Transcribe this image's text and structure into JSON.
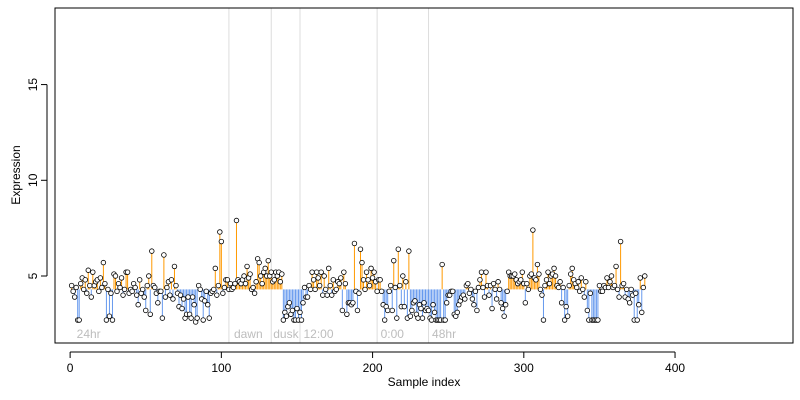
{
  "chart_data": {
    "type": "scatter",
    "xlabel": "Sample index",
    "ylabel": "Expression",
    "xlim": [
      -10,
      478
    ],
    "ylim": [
      1.5,
      19
    ],
    "x_ticks": [
      0,
      100,
      200,
      300,
      400
    ],
    "y_ticks": [
      5,
      10,
      15
    ],
    "baseline": 4.3,
    "grid": false,
    "colors": {
      "above_baseline": "#ff9900",
      "below_baseline": "#6699ee",
      "point_stroke": "#000000",
      "point_fill": "#ffffff",
      "divider": "#dddddd",
      "phase_label": "#bdbdbd"
    },
    "dividers": [
      105,
      133,
      152,
      203,
      237
    ],
    "phase_labels": [
      {
        "text": "24hr",
        "x": 3
      },
      {
        "text": "dawn",
        "x": 107
      },
      {
        "text": "dusk",
        "x": 133
      },
      {
        "text": "12:00",
        "x": 153
      },
      {
        "text": "0:00",
        "x": 204
      },
      {
        "text": "48hr",
        "x": 238
      }
    ],
    "points": [
      [
        1,
        4.5
      ],
      [
        2,
        4.2
      ],
      [
        3,
        3.9
      ],
      [
        4,
        4.4
      ],
      [
        5,
        2.7
      ],
      [
        6,
        2.7
      ],
      [
        7,
        4.6
      ],
      [
        8,
        4.9
      ],
      [
        9,
        4.3
      ],
      [
        10,
        4.8
      ],
      [
        11,
        4.1
      ],
      [
        12,
        5.3
      ],
      [
        13,
        4.5
      ],
      [
        14,
        3.9
      ],
      [
        15,
        5.2
      ],
      [
        16,
        4.5
      ],
      [
        17,
        4.7
      ],
      [
        18,
        4.8
      ],
      [
        19,
        4.2
      ],
      [
        20,
        4.9
      ],
      [
        21,
        4.4
      ],
      [
        22,
        5.7
      ],
      [
        23,
        4.6
      ],
      [
        24,
        2.7
      ],
      [
        25,
        4.3
      ],
      [
        26,
        2.9
      ],
      [
        27,
        4.1
      ],
      [
        28,
        2.7
      ],
      [
        29,
        5.1
      ],
      [
        30,
        5.0
      ],
      [
        31,
        4.2
      ],
      [
        32,
        4.6
      ],
      [
        33,
        4.4
      ],
      [
        34,
        4.9
      ],
      [
        35,
        4.0
      ],
      [
        36,
        4.3
      ],
      [
        37,
        5.2
      ],
      [
        38,
        5.2
      ],
      [
        39,
        4.1
      ],
      [
        40,
        4.3
      ],
      [
        41,
        4.2
      ],
      [
        42,
        4.6
      ],
      [
        43,
        4.4
      ],
      [
        44,
        4.0
      ],
      [
        45,
        3.5
      ],
      [
        46,
        4.8
      ],
      [
        47,
        4.1
      ],
      [
        48,
        4.3
      ],
      [
        49,
        3.9
      ],
      [
        50,
        3.2
      ],
      [
        51,
        4.5
      ],
      [
        52,
        5.0
      ],
      [
        53,
        3.0
      ],
      [
        54,
        6.3
      ],
      [
        55,
        4.5
      ],
      [
        56,
        4.4
      ],
      [
        57,
        4.1
      ],
      [
        58,
        3.6
      ],
      [
        59,
        4.2
      ],
      [
        60,
        4.2
      ],
      [
        61,
        2.8
      ],
      [
        62,
        6.1
      ],
      [
        63,
        3.9
      ],
      [
        64,
        4.4
      ],
      [
        65,
        4.7
      ],
      [
        66,
        4.0
      ],
      [
        67,
        4.8
      ],
      [
        68,
        3.8
      ],
      [
        69,
        5.5
      ],
      [
        70,
        4.5
      ],
      [
        71,
        4.1
      ],
      [
        72,
        3.4
      ],
      [
        73,
        4.0
      ],
      [
        74,
        3.3
      ],
      [
        75,
        3.8
      ],
      [
        76,
        2.8
      ],
      [
        77,
        3.0
      ],
      [
        78,
        3.9
      ],
      [
        79,
        3.0
      ],
      [
        80,
        2.8
      ],
      [
        81,
        3.9
      ],
      [
        82,
        3.5
      ],
      [
        83,
        2.6
      ],
      [
        84,
        2.8
      ],
      [
        85,
        4.5
      ],
      [
        86,
        4.3
      ],
      [
        87,
        3.8
      ],
      [
        88,
        2.7
      ],
      [
        89,
        3.7
      ],
      [
        90,
        4.2
      ],
      [
        91,
        3.5
      ],
      [
        92,
        2.8
      ],
      [
        93,
        4.1
      ],
      [
        94,
        4.2
      ],
      [
        95,
        4.3
      ],
      [
        96,
        5.4
      ],
      [
        97,
        4.0
      ],
      [
        98,
        4.5
      ],
      [
        99,
        7.3
      ],
      [
        100,
        6.8
      ],
      [
        101,
        4.1
      ],
      [
        102,
        4.4
      ],
      [
        103,
        4.8
      ],
      [
        104,
        4.8
      ],
      [
        105,
        4.3
      ],
      [
        106,
        4.6
      ],
      [
        107,
        4.3
      ],
      [
        108,
        4.4
      ],
      [
        109,
        4.6
      ],
      [
        110,
        7.9
      ],
      [
        111,
        4.8
      ],
      [
        112,
        4.7
      ],
      [
        113,
        4.6
      ],
      [
        114,
        4.8
      ],
      [
        115,
        5.0
      ],
      [
        116,
        4.6
      ],
      [
        117,
        5.5
      ],
      [
        118,
        4.9
      ],
      [
        119,
        5.1
      ],
      [
        120,
        4.3
      ],
      [
        121,
        4.4
      ],
      [
        122,
        4.1
      ],
      [
        123,
        4.7
      ],
      [
        124,
        5.9
      ],
      [
        125,
        5.7
      ],
      [
        126,
        5.0
      ],
      [
        127,
        4.6
      ],
      [
        128,
        5.2
      ],
      [
        129,
        5.4
      ],
      [
        130,
        5.0
      ],
      [
        131,
        5.8
      ],
      [
        132,
        5.0
      ],
      [
        133,
        5.2
      ],
      [
        134,
        4.7
      ],
      [
        135,
        4.8
      ],
      [
        136,
        5.2
      ],
      [
        137,
        5.0
      ],
      [
        138,
        5.2
      ],
      [
        139,
        4.7
      ],
      [
        140,
        5.1
      ],
      [
        141,
        2.7
      ],
      [
        142,
        3.1
      ],
      [
        143,
        2.9
      ],
      [
        144,
        3.4
      ],
      [
        145,
        3.6
      ],
      [
        146,
        3.0
      ],
      [
        147,
        3.2
      ],
      [
        148,
        2.7
      ],
      [
        149,
        2.7
      ],
      [
        150,
        3.3
      ],
      [
        151,
        2.7
      ],
      [
        152,
        3.1
      ],
      [
        153,
        2.7
      ],
      [
        154,
        3.6
      ],
      [
        155,
        4.4
      ],
      [
        156,
        3.9
      ],
      [
        157,
        3.9
      ],
      [
        158,
        4.5
      ],
      [
        159,
        4.3
      ],
      [
        160,
        5.2
      ],
      [
        161,
        4.8
      ],
      [
        162,
        4.3
      ],
      [
        163,
        5.2
      ],
      [
        164,
        4.9
      ],
      [
        165,
        4.5
      ],
      [
        166,
        5.2
      ],
      [
        167,
        4.0
      ],
      [
        168,
        5.0
      ],
      [
        169,
        4.3
      ],
      [
        170,
        4.0
      ],
      [
        171,
        5.4
      ],
      [
        172,
        4.5
      ],
      [
        173,
        4.0
      ],
      [
        174,
        4.8
      ],
      [
        175,
        4.2
      ],
      [
        176,
        4.3
      ],
      [
        177,
        4.7
      ],
      [
        178,
        4.6
      ],
      [
        179,
        4.9
      ],
      [
        180,
        3.2
      ],
      [
        181,
        5.2
      ],
      [
        182,
        4.6
      ],
      [
        183,
        3.0
      ],
      [
        184,
        3.6
      ],
      [
        185,
        3.6
      ],
      [
        186,
        3.5
      ],
      [
        187,
        3.6
      ],
      [
        188,
        6.7
      ],
      [
        189,
        4.2
      ],
      [
        190,
        3.2
      ],
      [
        191,
        4.1
      ],
      [
        192,
        6.4
      ],
      [
        193,
        5.7
      ],
      [
        194,
        4.8
      ],
      [
        195,
        4.3
      ],
      [
        196,
        5.2
      ],
      [
        197,
        4.8
      ],
      [
        198,
        4.5
      ],
      [
        199,
        5.4
      ],
      [
        200,
        4.9
      ],
      [
        201,
        5.2
      ],
      [
        202,
        4.7
      ],
      [
        203,
        4.2
      ],
      [
        204,
        4.8
      ],
      [
        205,
        4.8
      ],
      [
        206,
        4.2
      ],
      [
        207,
        3.5
      ],
      [
        208,
        2.7
      ],
      [
        209,
        3.4
      ],
      [
        210,
        3.2
      ],
      [
        211,
        4.2
      ],
      [
        212,
        4.5
      ],
      [
        213,
        3.2
      ],
      [
        214,
        5.8
      ],
      [
        215,
        4.4
      ],
      [
        216,
        2.8
      ],
      [
        217,
        6.4
      ],
      [
        218,
        4.5
      ],
      [
        219,
        3.4
      ],
      [
        220,
        5.0
      ],
      [
        221,
        3.4
      ],
      [
        222,
        4.7
      ],
      [
        223,
        2.8
      ],
      [
        224,
        6.3
      ],
      [
        225,
        2.9
      ],
      [
        226,
        3.2
      ],
      [
        227,
        3.6
      ],
      [
        228,
        3.7
      ],
      [
        229,
        3.0
      ],
      [
        230,
        2.8
      ],
      [
        231,
        3.5
      ],
      [
        232,
        3.3
      ],
      [
        233,
        2.8
      ],
      [
        234,
        3.6
      ],
      [
        235,
        3.2
      ],
      [
        236,
        3.3
      ],
      [
        237,
        3.2
      ],
      [
        238,
        2.8
      ],
      [
        239,
        2.7
      ],
      [
        240,
        3.5
      ],
      [
        241,
        3.1
      ],
      [
        242,
        2.7
      ],
      [
        243,
        2.7
      ],
      [
        244,
        2.7
      ],
      [
        245,
        2.7
      ],
      [
        246,
        5.6
      ],
      [
        247,
        2.7
      ],
      [
        248,
        2.7
      ],
      [
        249,
        3.6
      ],
      [
        250,
        4.0
      ],
      [
        251,
        4.0
      ],
      [
        252,
        4.2
      ],
      [
        253,
        4.2
      ],
      [
        254,
        3.0
      ],
      [
        255,
        2.9
      ],
      [
        256,
        3.1
      ],
      [
        257,
        3.5
      ],
      [
        258,
        3.7
      ],
      [
        259,
        3.9
      ],
      [
        260,
        4.0
      ],
      [
        261,
        3.8
      ],
      [
        262,
        4.5
      ],
      [
        263,
        4.6
      ],
      [
        264,
        4.1
      ],
      [
        265,
        4.3
      ],
      [
        266,
        3.8
      ],
      [
        267,
        3.5
      ],
      [
        268,
        4.2
      ],
      [
        269,
        3.2
      ],
      [
        270,
        4.4
      ],
      [
        271,
        4.8
      ],
      [
        272,
        5.2
      ],
      [
        273,
        4.4
      ],
      [
        274,
        3.9
      ],
      [
        275,
        5.2
      ],
      [
        276,
        4.5
      ],
      [
        277,
        4.0
      ],
      [
        278,
        4.5
      ],
      [
        279,
        3.3
      ],
      [
        280,
        4.6
      ],
      [
        281,
        4.3
      ],
      [
        282,
        3.8
      ],
      [
        283,
        4.7
      ],
      [
        284,
        4.3
      ],
      [
        285,
        3.6
      ],
      [
        286,
        3.3
      ],
      [
        287,
        2.9
      ],
      [
        288,
        3.5
      ],
      [
        289,
        4.2
      ],
      [
        290,
        5.2
      ],
      [
        291,
        5.0
      ],
      [
        292,
        5.0
      ],
      [
        293,
        5.0
      ],
      [
        294,
        5.1
      ],
      [
        295,
        4.8
      ],
      [
        296,
        4.6
      ],
      [
        297,
        4.7
      ],
      [
        298,
        4.8
      ],
      [
        299,
        5.2
      ],
      [
        300,
        4.6
      ],
      [
        301,
        3.6
      ],
      [
        302,
        4.6
      ],
      [
        303,
        4.3
      ],
      [
        304,
        5.0
      ],
      [
        305,
        5.1
      ],
      [
        306,
        7.4
      ],
      [
        307,
        4.9
      ],
      [
        308,
        4.8
      ],
      [
        309,
        5.6
      ],
      [
        310,
        5.1
      ],
      [
        311,
        4.3
      ],
      [
        312,
        4.0
      ],
      [
        313,
        2.7
      ],
      [
        314,
        4.5
      ],
      [
        315,
        4.8
      ],
      [
        316,
        5.2
      ],
      [
        317,
        4.6
      ],
      [
        318,
        5.0
      ],
      [
        319,
        5.1
      ],
      [
        320,
        5.4
      ],
      [
        321,
        5.0
      ],
      [
        322,
        4.5
      ],
      [
        323,
        4.4
      ],
      [
        324,
        4.7
      ],
      [
        325,
        3.6
      ],
      [
        326,
        4.4
      ],
      [
        327,
        2.7
      ],
      [
        328,
        3.4
      ],
      [
        329,
        2.9
      ],
      [
        330,
        4.5
      ],
      [
        331,
        5.1
      ],
      [
        332,
        5.4
      ],
      [
        333,
        4.8
      ],
      [
        334,
        4.6
      ],
      [
        335,
        4.4
      ],
      [
        336,
        4.7
      ],
      [
        337,
        4.2
      ],
      [
        338,
        4.9
      ],
      [
        339,
        4.3
      ],
      [
        340,
        3.9
      ],
      [
        341,
        4.7
      ],
      [
        342,
        3.2
      ],
      [
        343,
        2.7
      ],
      [
        344,
        4.1
      ],
      [
        345,
        2.7
      ],
      [
        346,
        2.7
      ],
      [
        347,
        2.7
      ],
      [
        348,
        2.7
      ],
      [
        349,
        2.7
      ],
      [
        350,
        4.5
      ],
      [
        351,
        4.2
      ],
      [
        352,
        4.2
      ],
      [
        353,
        4.5
      ],
      [
        354,
        4.4
      ],
      [
        355,
        4.9
      ],
      [
        356,
        4.4
      ],
      [
        357,
        4.7
      ],
      [
        358,
        5.0
      ],
      [
        359,
        4.4
      ],
      [
        360,
        4.5
      ],
      [
        361,
        5.5
      ],
      [
        362,
        4.3
      ],
      [
        363,
        3.9
      ],
      [
        364,
        6.8
      ],
      [
        365,
        4.5
      ],
      [
        366,
        4.6
      ],
      [
        367,
        3.9
      ],
      [
        368,
        4.3
      ],
      [
        369,
        3.8
      ],
      [
        370,
        3.6
      ],
      [
        371,
        4.3
      ],
      [
        372,
        4.0
      ],
      [
        373,
        2.7
      ],
      [
        374,
        4.1
      ],
      [
        375,
        2.7
      ],
      [
        376,
        3.5
      ],
      [
        377,
        4.9
      ],
      [
        378,
        3.1
      ],
      [
        379,
        4.4
      ],
      [
        380,
        5.0
      ]
    ]
  }
}
